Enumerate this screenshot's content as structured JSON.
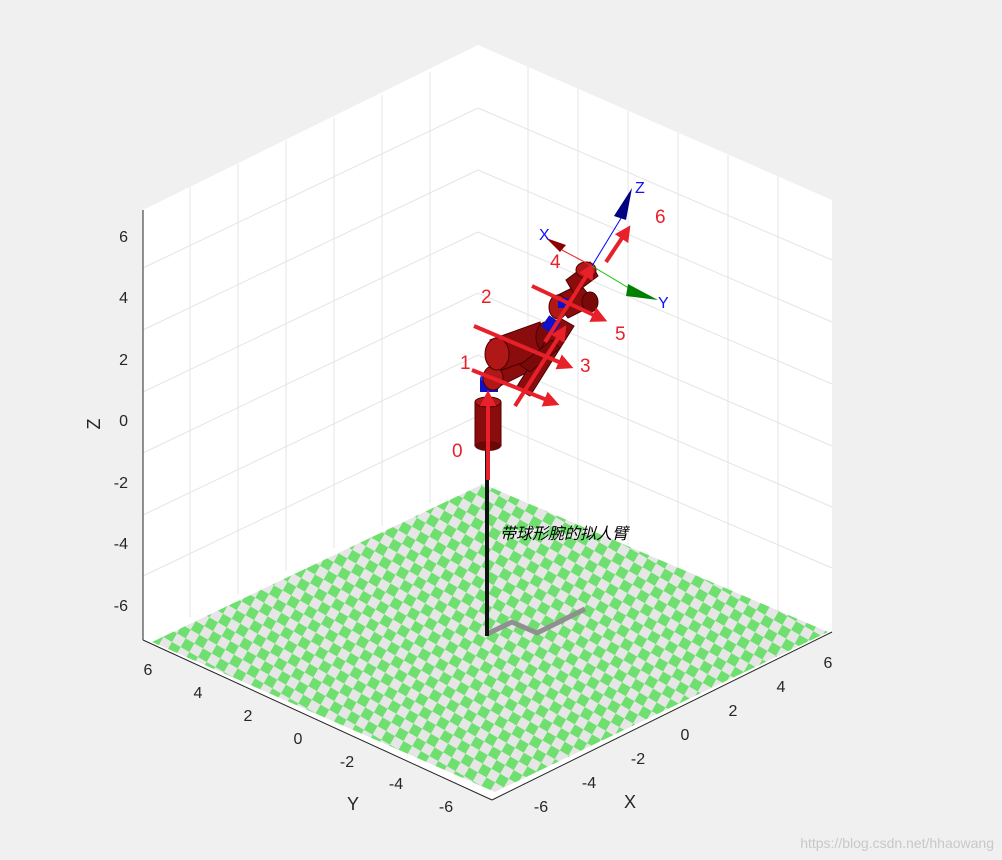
{
  "plot": {
    "robot_name": "带球形腕的拟人臂",
    "axes": {
      "x_label": "X",
      "y_label": "Y",
      "z_label": "Z",
      "x_ticks": [
        "-6",
        "-4",
        "-2",
        "0",
        "2",
        "4",
        "6"
      ],
      "y_ticks": [
        "6",
        "4",
        "2",
        "0",
        "-2",
        "-4",
        "-6"
      ],
      "z_ticks": [
        "6",
        "4",
        "2",
        "0",
        "-2",
        "-4",
        "-6"
      ]
    },
    "frame_numbers": [
      "0",
      "1",
      "2",
      "3",
      "4",
      "5",
      "6"
    ],
    "tool_axes": {
      "x": "X",
      "y": "Y",
      "z": "Z"
    },
    "colors": {
      "link": "#9a1010",
      "joint_axis": "#e8202a",
      "joint_connector": "#1010c8",
      "floor_green": "#6fe06f",
      "floor_light": "#e6e6e6",
      "tool_x": "#8b0000",
      "tool_y": "#008000",
      "tool_z": "#000080"
    }
  },
  "watermark": "https://blog.csdn.net/hhaowang"
}
